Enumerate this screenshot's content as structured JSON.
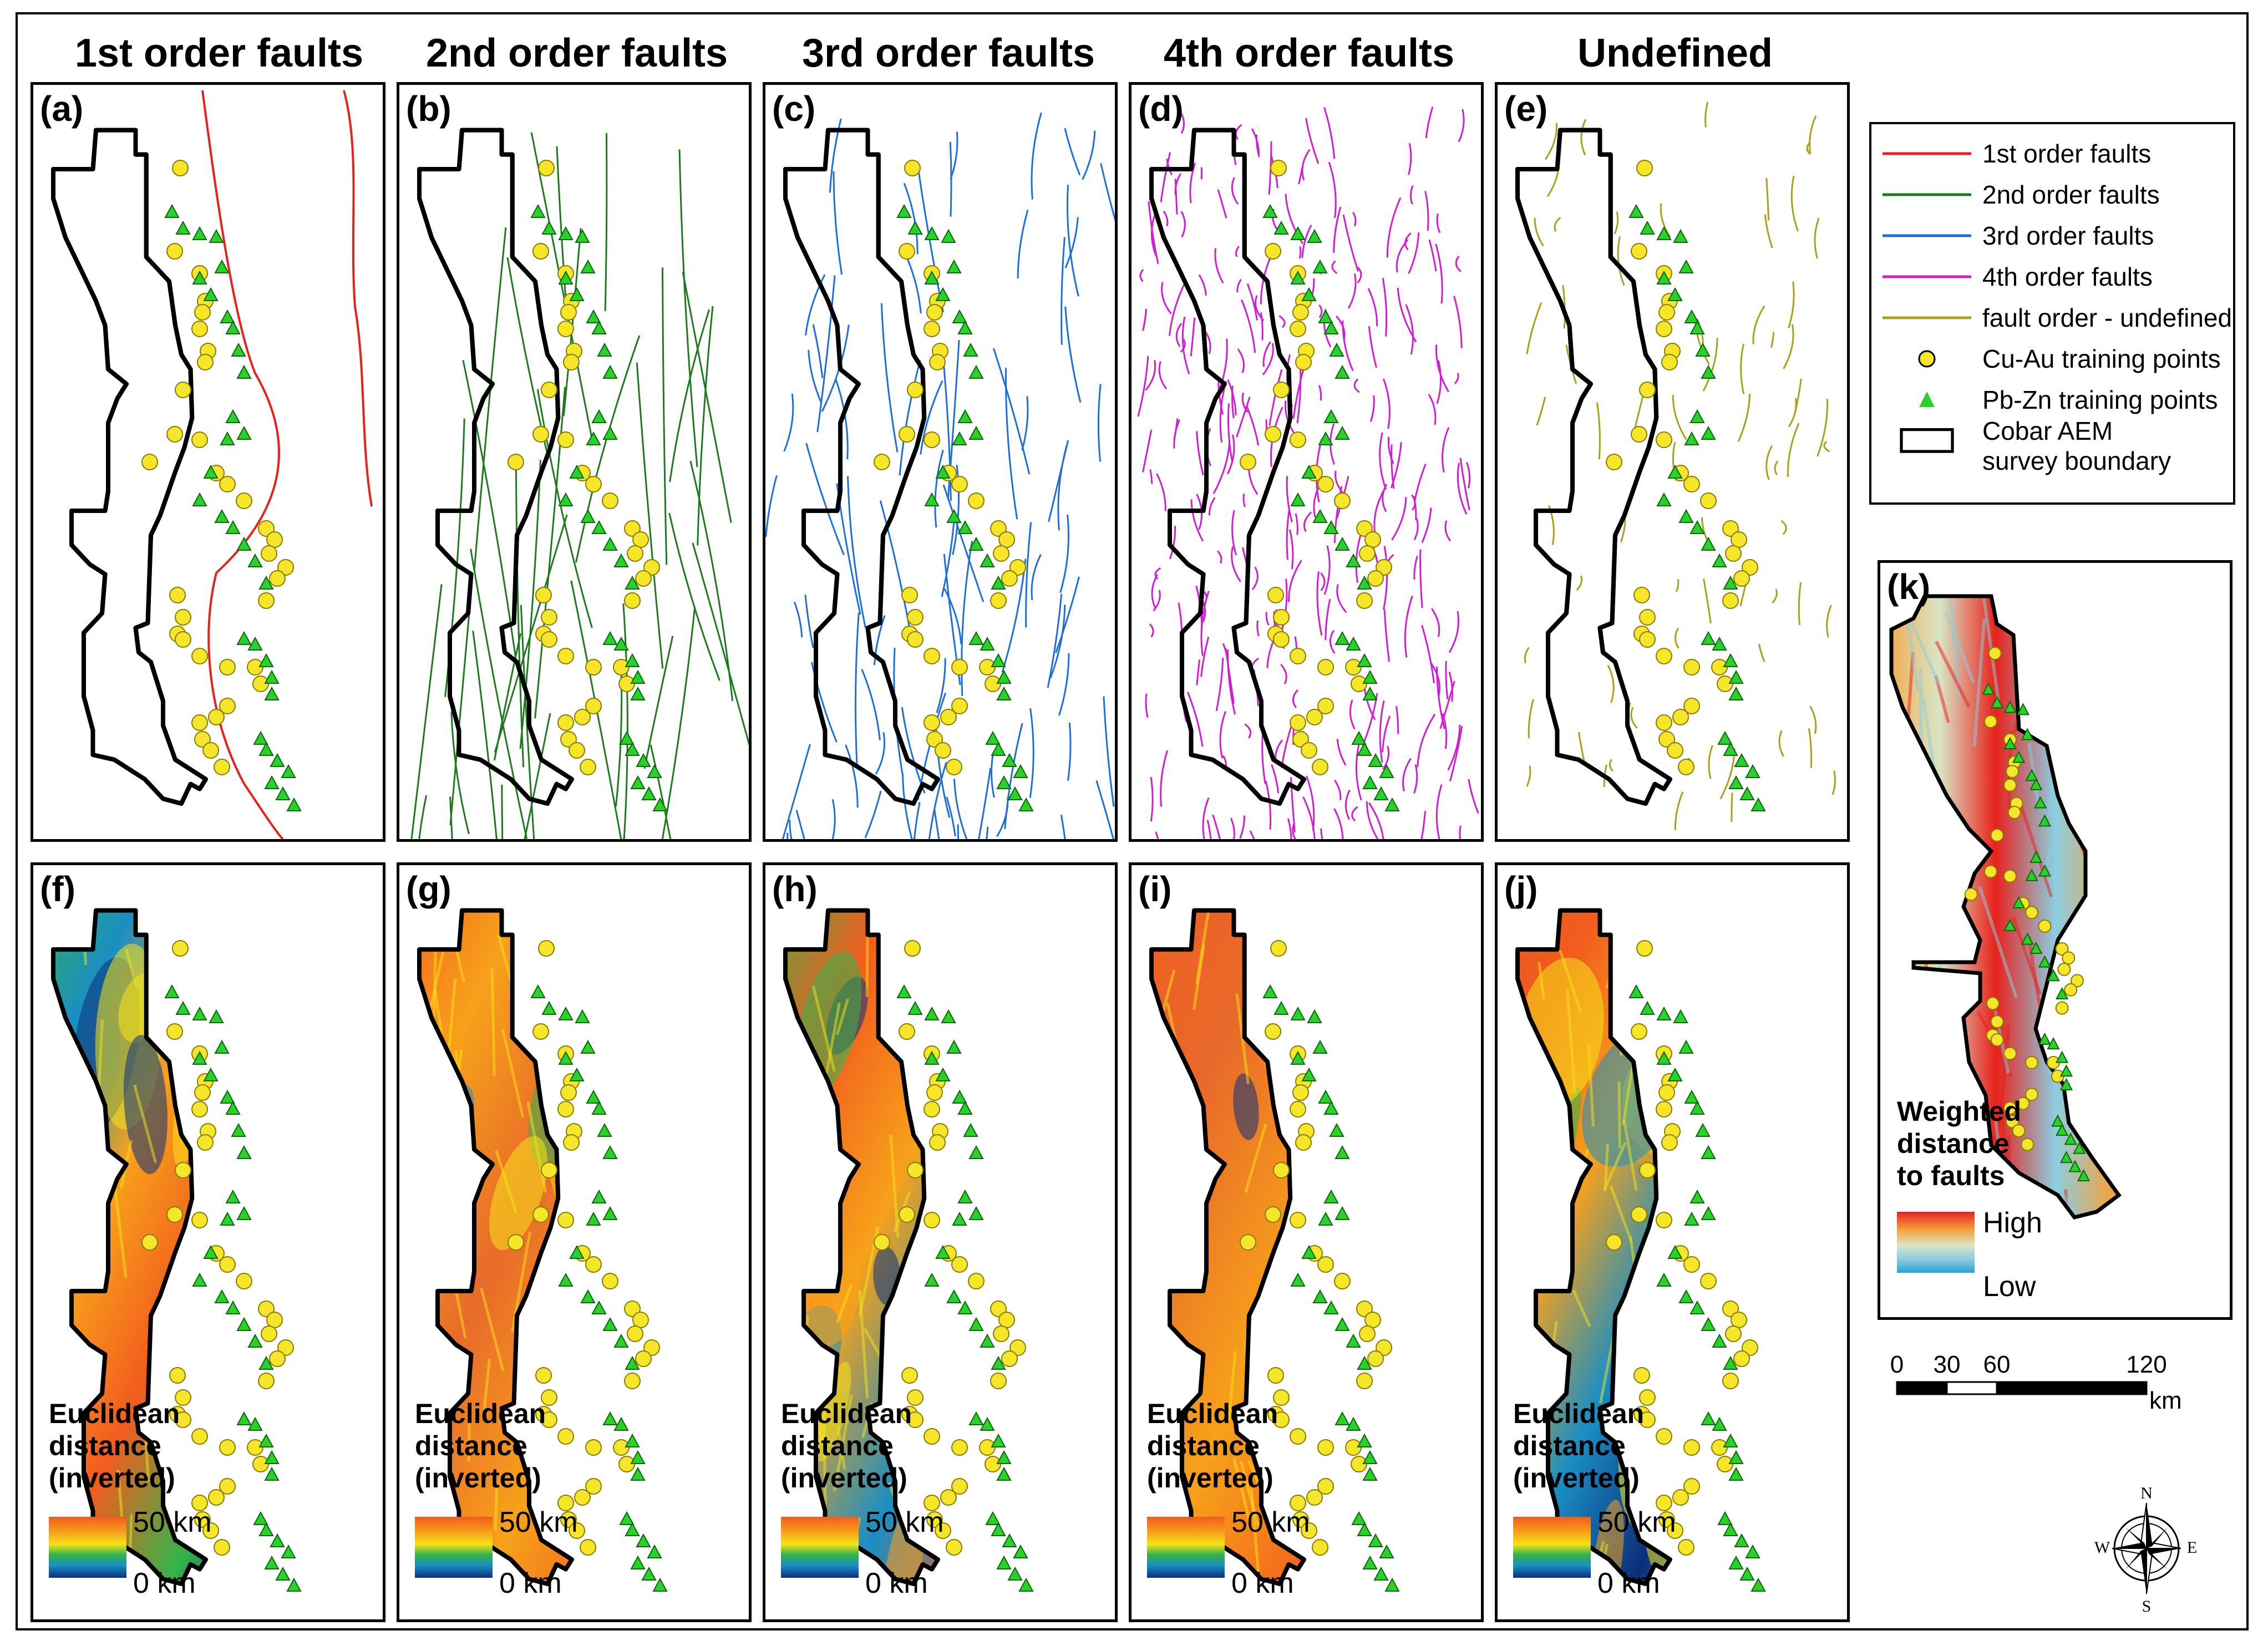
{
  "columns": [
    "1st order faults",
    "2nd order faults",
    "3rd order faults",
    "4th order faults",
    "Undefined"
  ],
  "panels_top": [
    {
      "label": "(a)",
      "fault_name": "1st order faults",
      "color": "#e8211c"
    },
    {
      "label": "(b)",
      "fault_name": "2nd order faults",
      "color": "#1f7a1f"
    },
    {
      "label": "(c)",
      "fault_name": "3rd order faults",
      "color": "#1e6fd9"
    },
    {
      "label": "(d)",
      "fault_name": "4th order faults",
      "color": "#d21ed2"
    },
    {
      "label": "(e)",
      "fault_name": "Undefined",
      "color": "#a8a21a"
    }
  ],
  "panels_bottom": [
    {
      "label": "(f)"
    },
    {
      "label": "(g)"
    },
    {
      "label": "(h)"
    },
    {
      "label": "(i)"
    },
    {
      "label": "(j)"
    }
  ],
  "ramp": {
    "title_lines": [
      "Euclidean",
      "distance",
      "(inverted)"
    ],
    "high": "50 km",
    "low": "0 km"
  },
  "weighted": {
    "label": "(k)",
    "title_lines": [
      "Weighted",
      "distance",
      "to faults"
    ],
    "high": "High",
    "low": "Low"
  },
  "legend": [
    {
      "text": "1st order faults",
      "symbol": "line",
      "color": "#e8211c"
    },
    {
      "text": "2nd order faults",
      "symbol": "line",
      "color": "#1f7a1f"
    },
    {
      "text": "3rd order faults",
      "symbol": "line",
      "color": "#1e6fd9"
    },
    {
      "text": "4th order faults",
      "symbol": "line",
      "color": "#d21ed2"
    },
    {
      "text": "fault order - undefined",
      "symbol": "line",
      "color": "#a8a21a"
    },
    {
      "text": "Cu-Au training points",
      "symbol": "circle",
      "color": "#f5e62a"
    },
    {
      "text": "Pb-Zn training points",
      "symbol": "triangle",
      "color": "#2bd12b"
    },
    {
      "text_lines": [
        "Cobar AEM",
        "survey boundary"
      ],
      "symbol": "box",
      "color": "#000000"
    }
  ],
  "scale": {
    "ticks": [
      "0",
      "30",
      "60",
      "120"
    ],
    "unit": "km"
  },
  "compass": {
    "n": "N",
    "e": "E",
    "s": "S",
    "w": "W"
  }
}
